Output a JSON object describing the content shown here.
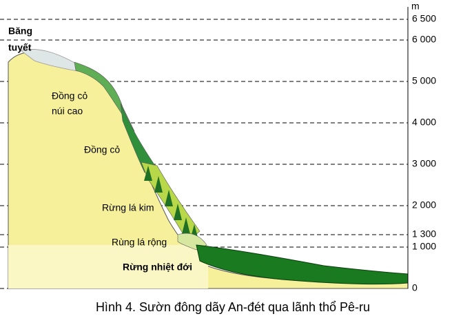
{
  "unit": "m",
  "ticks": [
    {
      "value": 6500,
      "label": "6 500"
    },
    {
      "value": 6000,
      "label": "6 000"
    },
    {
      "value": 5000,
      "label": "5 000"
    },
    {
      "value": 4000,
      "label": "4 000"
    },
    {
      "value": 3000,
      "label": "3 000"
    },
    {
      "value": 2000,
      "label": "2 000"
    },
    {
      "value": 1300,
      "label": "1 300"
    },
    {
      "value": 1000,
      "label": "1 000"
    },
    0
  ],
  "zones": {
    "snow": [
      "Băng",
      "tuyết"
    ],
    "alpine_meadow": [
      "Đồng cỏ",
      "núi cao"
    ],
    "meadow": "Đồng cỏ",
    "conifer": "Rừng lá kim",
    "broadleaf": "Rùng lá rộng",
    "tropical": "Rừng nhiệt đới"
  },
  "caption": "Hình 4. Sườn đông dãy An-đét qua lãnh thổ Pê-ru"
}
